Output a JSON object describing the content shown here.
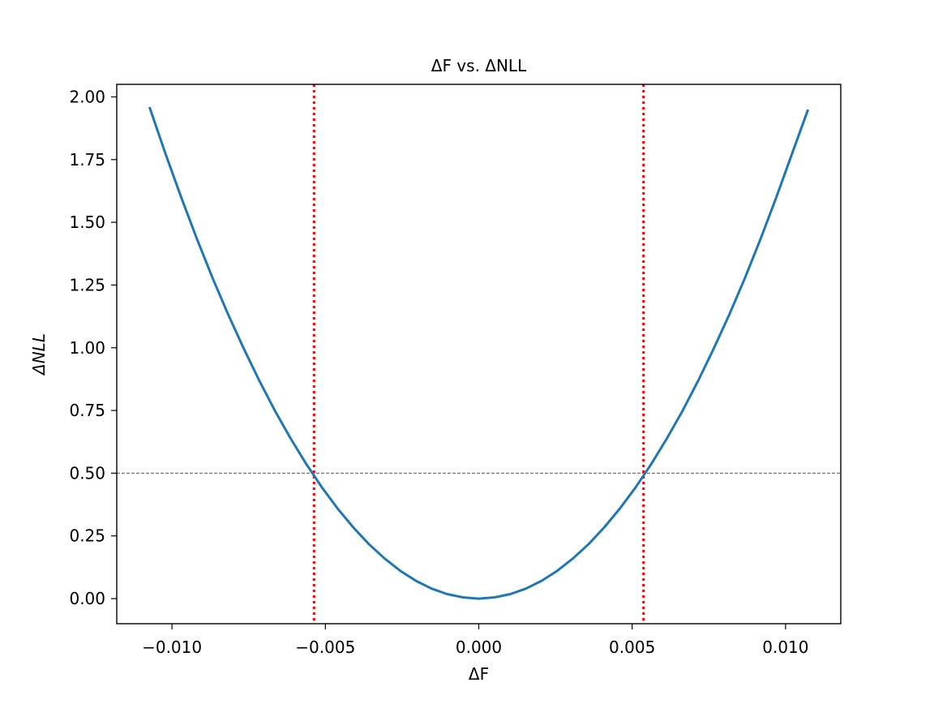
{
  "chart_data": {
    "type": "line",
    "title": "ΔF vs. ΔNLL",
    "xlabel": "ΔF",
    "ylabel": "ΔNLL",
    "xlim": [
      -0.0118,
      0.0118
    ],
    "ylim": [
      -0.1,
      2.05
    ],
    "x_ticks": [
      -0.01,
      -0.005,
      0.0,
      0.005,
      0.01
    ],
    "x_tick_labels": [
      "−0.010",
      "−0.005",
      "0.000",
      "0.005",
      "0.010"
    ],
    "y_ticks": [
      0.0,
      0.25,
      0.5,
      0.75,
      1.0,
      1.25,
      1.5,
      1.75,
      2.0
    ],
    "y_tick_labels": [
      "0.00",
      "0.25",
      "0.50",
      "0.75",
      "1.00",
      "1.25",
      "1.50",
      "1.75",
      "2.00"
    ],
    "grid": false,
    "series": [
      {
        "color": "#1f77b4",
        "x": [
          -0.01072,
          -0.01021,
          -0.0097,
          -0.00919,
          -0.00868,
          -0.00817,
          -0.00766,
          -0.00715,
          -0.00664,
          -0.00613,
          -0.00562,
          -0.00511,
          -0.0046,
          -0.00409,
          -0.00358,
          -0.00307,
          -0.00256,
          -0.00205,
          -0.00154,
          -0.00103,
          -0.00052,
          0.0,
          0.00052,
          0.00103,
          0.00154,
          0.00205,
          0.00256,
          0.00307,
          0.00358,
          0.00409,
          0.0046,
          0.00511,
          0.00562,
          0.00613,
          0.00664,
          0.00715,
          0.00766,
          0.00817,
          0.00868,
          0.00919,
          0.0097,
          0.01021,
          0.01072
        ],
        "y": [
          1.955,
          1.773,
          1.6,
          1.435,
          1.279,
          1.133,
          0.997,
          0.868,
          0.748,
          0.638,
          0.536,
          0.443,
          0.359,
          0.284,
          0.217,
          0.16,
          0.111,
          0.071,
          0.04,
          0.018,
          0.005,
          0.0,
          0.005,
          0.018,
          0.04,
          0.071,
          0.111,
          0.16,
          0.217,
          0.284,
          0.359,
          0.443,
          0.536,
          0.638,
          0.748,
          0.868,
          0.997,
          1.133,
          1.279,
          1.435,
          1.6,
          1.773,
          1.945
        ]
      }
    ],
    "reference_lines": [
      {
        "orientation": "horizontal",
        "value": 0.5,
        "color": "#555555",
        "style": "dashed"
      },
      {
        "orientation": "vertical",
        "value": -0.00537,
        "color": "#ff0000",
        "style": "dotted"
      },
      {
        "orientation": "vertical",
        "value": 0.00537,
        "color": "#ff0000",
        "style": "dotted"
      }
    ]
  }
}
